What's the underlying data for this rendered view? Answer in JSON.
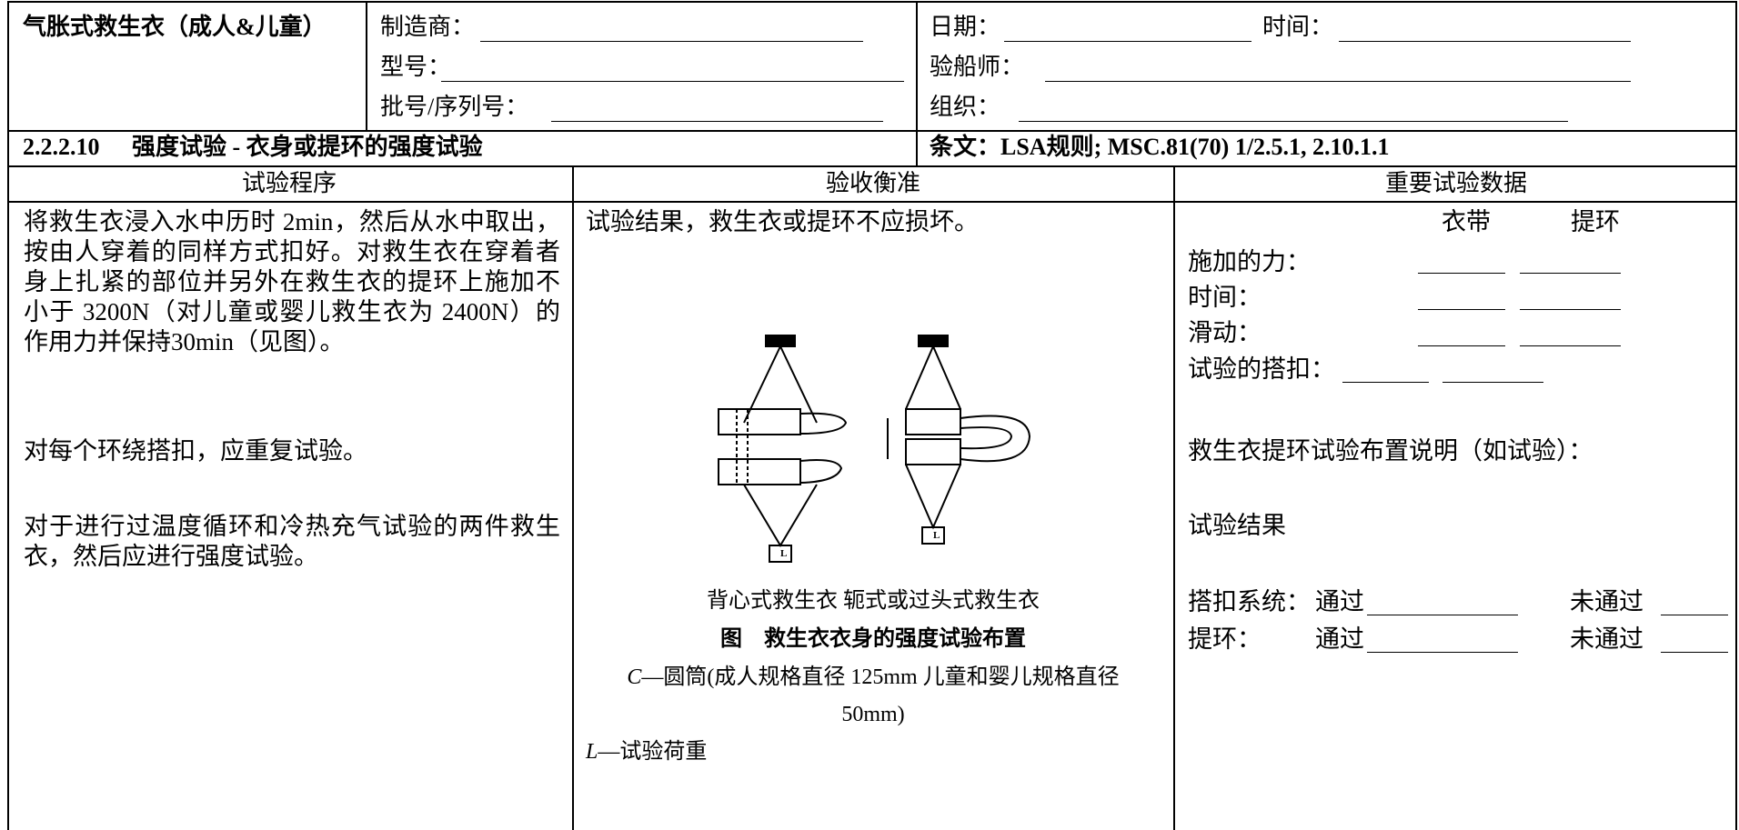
{
  "header": {
    "title": "气胀式救生衣（成人&儿童）",
    "manufacturer": "制造商：",
    "model": "型号：",
    "batch_serial": "批号/序列号：",
    "date": "日期：",
    "time": "时间：",
    "surveyor": "验船师：",
    "organization": "组织："
  },
  "section": {
    "number": "2.2.2.10",
    "title": "强度试验 - 衣身或提环的强度试验",
    "clause": "条文：LSA规则; MSC.81(70) 1/2.5.1, 2.10.1.1"
  },
  "columns": [
    "试验程序",
    "验收衡准",
    "重要试验数据"
  ],
  "procedure": [
    "将救生衣浸入水中历时 2min，然后从水中取出，按由人穿着的同样方式扣好。对救生衣在穿着者身上扎紧的部位并另外在救生衣的提环上施加不小于 3200N（对儿童或婴儿救生衣为 2400N）的作用力并保持30min（见图）。",
    "对每个环绕搭扣，应重复试验。",
    "对于进行过温度循环和冷热充气试验的两件救生衣，然后应进行强度试验。"
  ],
  "criteria": {
    "statement": "试验结果，救生衣或提环不应损坏。",
    "figure_labels": "背心式救生衣  轭式或过头式救生衣",
    "figure_caption": "图　救生衣衣身的强度试验布置",
    "legend": [
      {
        "symbol": "C",
        "text": "—圆筒(成人规格直径 125mm 儿童和婴儿规格直径 50mm)"
      },
      {
        "symbol": "L",
        "text": "—试验荷重"
      }
    ]
  },
  "data": {
    "columns": [
      "衣带",
      "提环"
    ],
    "rows": [
      "施加的力：",
      "时间：",
      "滑动："
    ],
    "buckle": "试验的搭扣：",
    "arrangement_note": "救生衣提环试验布置说明（如试验）：",
    "result_title": "试验结果",
    "results": [
      {
        "item": "搭扣系统：",
        "pass": "通过",
        "fail": "未通过"
      },
      {
        "item": "提环：",
        "pass": "通过",
        "fail": "未通过"
      }
    ]
  }
}
